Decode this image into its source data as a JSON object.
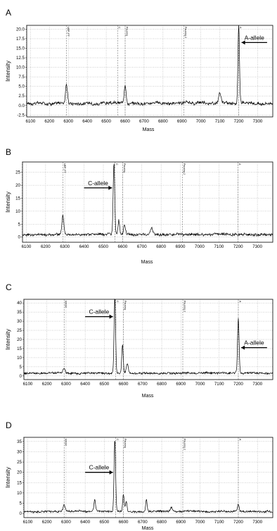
{
  "figure": {
    "panel_labels": [
      "A",
      "B",
      "C",
      "D"
    ]
  },
  "chart_data": [
    {
      "type": "line",
      "panel": "A",
      "xlabel": "Mass",
      "ylabel": "Intensity",
      "xlim": [
        6080,
        7380
      ],
      "ylim": [
        -3,
        21
      ],
      "x_ticks": [
        6100,
        6200,
        6300,
        6400,
        6500,
        6600,
        6700,
        6800,
        6900,
        7000,
        7100,
        7200,
        7300
      ],
      "y_ticks": [
        -2.5,
        0.0,
        2.5,
        5.0,
        7.5,
        10.0,
        12.5,
        15.0,
        17.5,
        20.0
      ],
      "y_tick_labels": [
        "-2.5",
        "0.0",
        "2.5",
        "5.0",
        "7.5",
        "10.0",
        "12.5",
        "15.0",
        "17.5",
        "20.0"
      ],
      "baseline": 0.6,
      "noise": 0.7,
      "peaks": [
        {
          "x": 6290,
          "y": 5.2,
          "w": 5
        },
        {
          "x": 6600,
          "y": 5.0,
          "w": 5
        },
        {
          "x": 7100,
          "y": 2.5,
          "w": 6
        },
        {
          "x": 7200,
          "y": 20.5,
          "w": 4
        }
      ],
      "markers": [
        {
          "x": 6290,
          "label": "UEP_FT"
        },
        {
          "x": 6560,
          "label": "C"
        },
        {
          "x": 6600,
          "label": "Pausing"
        },
        {
          "x": 6910,
          "label": "Pausing 2"
        },
        {
          "x": 7200,
          "label": "A"
        }
      ],
      "annotations": [
        {
          "text": "A-allele",
          "arrow_from": 7350,
          "arrow_to": 7215,
          "y": 16.5
        }
      ]
    },
    {
      "type": "line",
      "panel": "B",
      "xlabel": "Mass",
      "ylabel": "Intensity",
      "xlim": [
        6080,
        7380
      ],
      "ylim": [
        -2,
        29
      ],
      "x_ticks": [
        6100,
        6200,
        6300,
        6400,
        6500,
        6600,
        6700,
        6800,
        6900,
        7000,
        7100,
        7200,
        7300
      ],
      "y_ticks": [
        0,
        5,
        10,
        15,
        20,
        25
      ],
      "y_tick_labels": [
        "0",
        "5",
        "10",
        "15",
        "20",
        "25"
      ],
      "baseline": 1.0,
      "noise": 0.9,
      "peaks": [
        {
          "x": 6290,
          "y": 7.0,
          "w": 5
        },
        {
          "x": 6555,
          "y": 27.5,
          "w": 4
        },
        {
          "x": 6580,
          "y": 5.5,
          "w": 4
        },
        {
          "x": 6610,
          "y": 3.5,
          "w": 5
        },
        {
          "x": 6750,
          "y": 2.5,
          "w": 6
        }
      ],
      "markers": [
        {
          "x": 6290,
          "label": "UEP_FT"
        },
        {
          "x": 6560,
          "label": "C"
        },
        {
          "x": 6600,
          "label": "Pausing"
        },
        {
          "x": 6910,
          "label": "Pausing 2"
        },
        {
          "x": 7200,
          "label": "A"
        }
      ],
      "annotations": [
        {
          "text": "C-allele",
          "arrow_from": 6400,
          "arrow_to": 6545,
          "y": 19
        }
      ]
    },
    {
      "type": "line",
      "panel": "C",
      "xlabel": "Mass",
      "ylabel": "Intensity",
      "xlim": [
        6080,
        7380
      ],
      "ylim": [
        -2,
        42
      ],
      "x_ticks": [
        6100,
        6200,
        6300,
        6400,
        6500,
        6600,
        6700,
        6800,
        6900,
        7000,
        7100,
        7200,
        7300
      ],
      "y_ticks": [
        0,
        5,
        10,
        15,
        20,
        25,
        30,
        35,
        40
      ],
      "y_tick_labels": [
        "0",
        "5",
        "10",
        "15",
        "20",
        "25",
        "30",
        "35",
        "40"
      ],
      "baseline": 1.5,
      "noise": 1.0,
      "peaks": [
        {
          "x": 6290,
          "y": 3.0,
          "w": 5
        },
        {
          "x": 6555,
          "y": 41.5,
          "w": 4
        },
        {
          "x": 6595,
          "y": 15.5,
          "w": 4
        },
        {
          "x": 6620,
          "y": 5.0,
          "w": 5
        },
        {
          "x": 7200,
          "y": 30.0,
          "w": 4
        }
      ],
      "markers": [
        {
          "x": 6290,
          "label": "Inhibit"
        },
        {
          "x": 6560,
          "label": "C"
        },
        {
          "x": 6600,
          "label": "Pausing"
        },
        {
          "x": 6910,
          "label": "Pausing 2"
        },
        {
          "x": 7200,
          "label": "A"
        }
      ],
      "annotations": [
        {
          "text": "C-allele",
          "arrow_from": 6400,
          "arrow_to": 6545,
          "y": 32.5
        },
        {
          "text": "A-allele",
          "arrow_from": 7350,
          "arrow_to": 7215,
          "y": 15.5
        }
      ]
    },
    {
      "type": "line",
      "panel": "D",
      "xlabel": "Mass",
      "ylabel": "Intensity",
      "xlim": [
        6080,
        7380
      ],
      "ylim": [
        -2,
        37
      ],
      "x_ticks": [
        6100,
        6200,
        6300,
        6400,
        6500,
        6600,
        6700,
        6800,
        6900,
        7000,
        7100,
        7200,
        7300
      ],
      "y_ticks": [
        0,
        5,
        10,
        15,
        20,
        25,
        30,
        35
      ],
      "y_tick_labels": [
        "0",
        "5",
        "10",
        "15",
        "20",
        "25",
        "30",
        "35"
      ],
      "baseline": 1.0,
      "noise": 0.8,
      "peaks": [
        {
          "x": 6290,
          "y": 3.5,
          "w": 5
        },
        {
          "x": 6450,
          "y": 5.5,
          "w": 4
        },
        {
          "x": 6555,
          "y": 35.0,
          "w": 4
        },
        {
          "x": 6600,
          "y": 8.5,
          "w": 4
        },
        {
          "x": 6615,
          "y": 5.0,
          "w": 4
        },
        {
          "x": 6720,
          "y": 5.5,
          "w": 4
        },
        {
          "x": 6850,
          "y": 2.0,
          "w": 5
        },
        {
          "x": 7200,
          "y": 3.5,
          "w": 4
        }
      ],
      "markers": [
        {
          "x": 6290,
          "label": "Inhibit"
        },
        {
          "x": 6560,
          "label": "C"
        },
        {
          "x": 6600,
          "label": "Pausing"
        },
        {
          "x": 6910,
          "label": "Pausing 2"
        },
        {
          "x": 7200,
          "label": "A"
        }
      ],
      "annotations": [
        {
          "text": "C-allele",
          "arrow_from": 6400,
          "arrow_to": 6545,
          "y": 20
        }
      ]
    }
  ]
}
